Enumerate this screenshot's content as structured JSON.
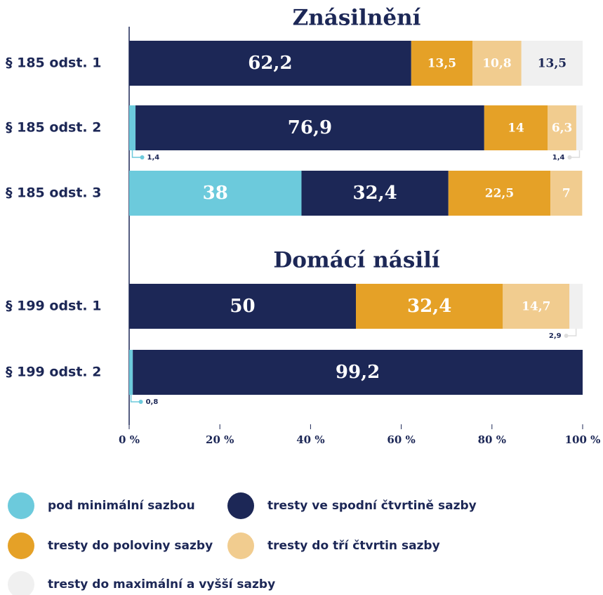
{
  "chart_data": {
    "type": "stacked-bar",
    "orientation": "horizontal",
    "sections": [
      {
        "title": "Znásilnění",
        "categories": [
          "§ 185 odst. 1",
          "§ 185 odst. 2",
          "§ 185 odst. 3"
        ]
      },
      {
        "title": "Domácí násilí",
        "categories": [
          "§ 199 odst. 1",
          "§ 199 odst. 2"
        ]
      }
    ],
    "series": [
      {
        "name": "pod minimální sazbou",
        "color": "#6ccadc",
        "values": [
          null,
          1.4,
          38,
          null,
          0.8
        ],
        "value_labels": [
          null,
          "1,4",
          "38",
          null,
          "0,8"
        ]
      },
      {
        "name": "tresty ve spodní čtvrtině sazby",
        "color": "#1c2756",
        "values": [
          62.2,
          76.9,
          32.4,
          50,
          99.2
        ],
        "value_labels": [
          "62,2",
          "76,9",
          "32,4",
          "50",
          "99,2"
        ]
      },
      {
        "name": "tresty do poloviny sazby",
        "color": "#e5a127",
        "values": [
          13.5,
          14,
          22.5,
          32.4,
          null
        ],
        "value_labels": [
          "13,5",
          "14",
          "22,5",
          "32,4",
          null
        ]
      },
      {
        "name": "tresty do tří čtvrtin sazby",
        "color": "#f1cc8f",
        "values": [
          10.8,
          6.3,
          7,
          14.7,
          null
        ],
        "value_labels": [
          "10,8",
          "6,3",
          "7",
          "14,7",
          null
        ]
      },
      {
        "name": "tresty do maximální a vyšší sazby",
        "color": "#f0f0f0",
        "values": [
          13.5,
          1.4,
          null,
          2.9,
          null
        ],
        "value_labels": [
          "13,5",
          "1,4",
          null,
          "2,9",
          null
        ]
      }
    ],
    "xlim": [
      0,
      100
    ],
    "xticks": [
      {
        "value": 0,
        "label": "0 %"
      },
      {
        "value": 20,
        "label": "20 %"
      },
      {
        "value": 40,
        "label": "40 %"
      },
      {
        "value": 60,
        "label": "60 %"
      },
      {
        "value": 80,
        "label": "80 %"
      },
      {
        "value": 100,
        "label": "100 %"
      }
    ]
  }
}
